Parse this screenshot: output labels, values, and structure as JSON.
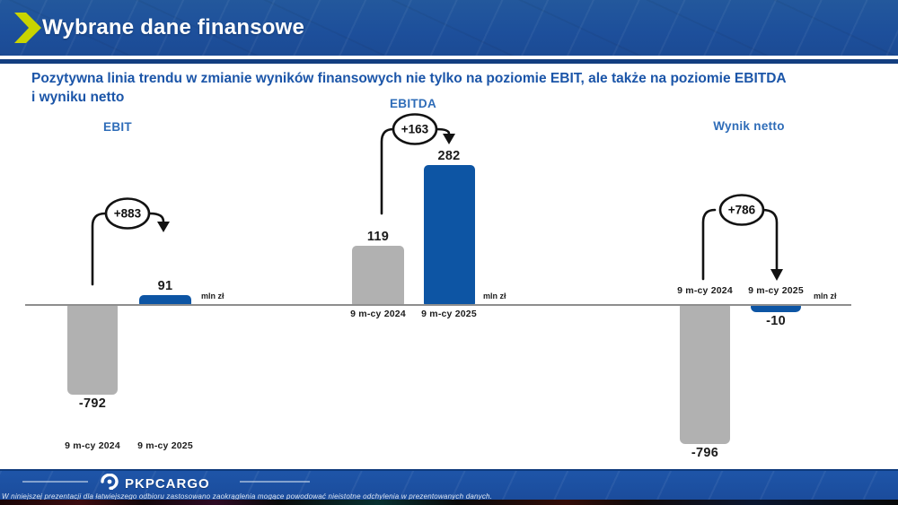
{
  "header": {
    "title": "Wybrane dane finansowe"
  },
  "subtitle": {
    "line1": "Pozytywna linia trendu w zmianie wyników finansowych nie tylko na poziomie EBIT, ale także na poziomie EBITDA",
    "line2": "i wyniku netto"
  },
  "colors": {
    "bar_2024": "#b1b1b1",
    "bar_2025": "#0d55a4",
    "accent_blue": "#2e6cb8",
    "header_bg": "#1d4f9b",
    "chevron_yellow": "#c9d400",
    "footer_bg": "#1e55a8",
    "axis_gray": "#8e8e8e",
    "arrow_black": "#121212"
  },
  "chart_data": [
    {
      "type": "bar",
      "title": "EBIT",
      "unit": "mln zł",
      "categories": [
        "9 m-cy 2024",
        "9 m-cy 2025"
      ],
      "values": [
        -792,
        91
      ],
      "value_labels": [
        "-792",
        "91"
      ],
      "change_label": "+883"
    },
    {
      "type": "bar",
      "title": "EBITDA",
      "unit": "mln zł",
      "categories": [
        "9 m-cy 2024",
        "9 m-cy 2025"
      ],
      "values": [
        119,
        282
      ],
      "value_labels": [
        "119",
        "282"
      ],
      "change_label": "+163"
    },
    {
      "type": "bar",
      "title": "Wynik netto",
      "unit": "mln zł",
      "categories": [
        "9 m-cy 2024",
        "9 m-cy 2025"
      ],
      "values": [
        -796,
        -10
      ],
      "value_labels": [
        "-796",
        "-10"
      ],
      "change_label": "+786"
    }
  ],
  "footer": {
    "logo_text": "PKPCARGO",
    "disclaimer": "W niniejszej prezentacji dla łatwiejszego odbioru zastosowano zaokrąglenia mogące powodować nieistotne odchylenia w prezentowanych danych."
  }
}
